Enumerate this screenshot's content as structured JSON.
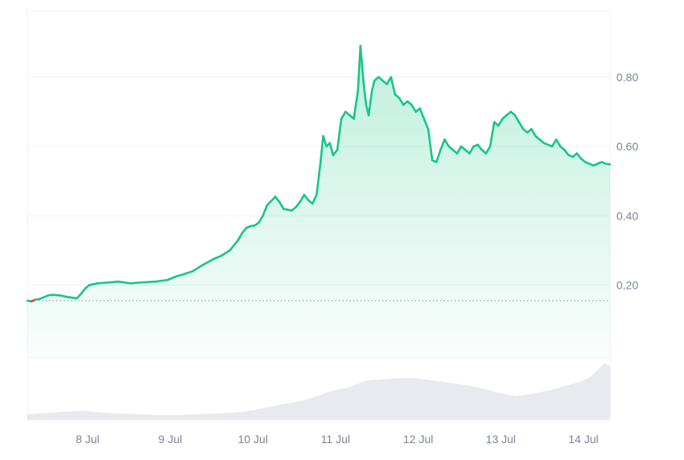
{
  "colors": {
    "up_line": "#16c784",
    "down_line": "#ea3943",
    "area_fill": "#16c784",
    "grid": "#eef0f3",
    "volume_fill": "#e8eaef",
    "tick_text": "#7a8494",
    "baseline": "#8a93a3"
  },
  "chart_data": [
    {
      "type": "area",
      "series": [
        {
          "values_x_unit": "days (Jul)",
          "x": [
            7.3,
            7.35,
            7.4,
            7.45,
            7.5,
            7.55,
            7.6,
            7.7,
            7.8,
            7.9,
            7.95,
            8.0,
            8.05,
            8.15,
            8.25,
            8.4,
            8.55,
            8.7,
            8.85,
            9.0,
            9.1,
            9.2,
            9.3,
            9.4,
            9.55,
            9.65,
            9.75,
            9.85,
            9.9,
            9.95,
            10.0,
            10.05,
            10.1,
            10.15,
            10.2,
            10.3,
            10.35,
            10.4,
            10.5,
            10.55,
            10.6,
            10.65,
            10.7,
            10.75,
            10.8,
            10.85,
            10.88,
            10.92,
            10.96,
            11.0,
            11.05,
            11.1,
            11.15,
            11.2,
            11.25,
            11.3,
            11.33,
            11.37,
            11.4,
            11.43,
            11.47,
            11.5,
            11.55,
            11.6,
            11.65,
            11.7,
            11.75,
            11.8,
            11.85,
            11.9,
            11.95,
            12.0,
            12.05,
            12.1,
            12.15,
            12.2,
            12.25,
            12.3,
            12.35,
            12.4,
            12.45,
            12.5,
            12.55,
            12.6,
            12.65,
            12.7,
            12.75,
            12.8,
            12.85,
            12.9,
            12.95,
            13.0,
            13.05,
            13.1,
            13.15,
            13.2,
            13.25,
            13.3,
            13.35,
            13.4,
            13.45,
            13.5,
            13.55,
            13.6,
            13.65,
            13.7,
            13.75,
            13.8,
            13.85,
            13.9,
            13.95,
            14.0,
            14.05,
            14.1,
            14.15,
            14.2,
            14.25,
            14.3,
            14.35
          ],
          "y": [
            0.155,
            0.153,
            0.158,
            0.16,
            0.165,
            0.17,
            0.172,
            0.17,
            0.165,
            0.162,
            0.175,
            0.19,
            0.2,
            0.205,
            0.207,
            0.21,
            0.205,
            0.208,
            0.21,
            0.215,
            0.225,
            0.232,
            0.24,
            0.255,
            0.275,
            0.285,
            0.3,
            0.33,
            0.35,
            0.365,
            0.37,
            0.372,
            0.38,
            0.4,
            0.43,
            0.455,
            0.44,
            0.42,
            0.415,
            0.425,
            0.44,
            0.46,
            0.445,
            0.435,
            0.46,
            0.56,
            0.63,
            0.6,
            0.61,
            0.575,
            0.59,
            0.68,
            0.7,
            0.69,
            0.68,
            0.76,
            0.89,
            0.78,
            0.72,
            0.69,
            0.76,
            0.79,
            0.8,
            0.79,
            0.78,
            0.8,
            0.75,
            0.74,
            0.72,
            0.73,
            0.72,
            0.7,
            0.71,
            0.68,
            0.65,
            0.56,
            0.555,
            0.59,
            0.62,
            0.6,
            0.59,
            0.58,
            0.6,
            0.59,
            0.58,
            0.6,
            0.605,
            0.59,
            0.58,
            0.6,
            0.67,
            0.66,
            0.68,
            0.69,
            0.7,
            0.69,
            0.67,
            0.65,
            0.64,
            0.65,
            0.63,
            0.62,
            0.61,
            0.605,
            0.6,
            0.62,
            0.6,
            0.59,
            0.575,
            0.57,
            0.58,
            0.565,
            0.555,
            0.55,
            0.545,
            0.55,
            0.555,
            0.55,
            0.548
          ]
        }
      ],
      "baseline_y": 0.155,
      "ylim": [
        -0.01,
        0.99
      ],
      "xlim": [
        7.3,
        14.35
      ],
      "yticks": [
        0.2,
        0.4,
        0.6,
        0.8
      ],
      "ytick_labels": [
        "0.20",
        "0.40",
        "0.60",
        "0.80"
      ],
      "xticks": [
        8,
        9,
        10,
        11,
        12,
        13,
        14
      ],
      "xtick_labels": [
        "8 Jul",
        "9 Jul",
        "10 Jul",
        "11 Jul",
        "12 Jul",
        "13 Jul",
        "14 Jul"
      ],
      "grid": true,
      "legend": "none"
    },
    {
      "type": "area",
      "series": [
        {
          "x": [
            7.3,
            7.5,
            7.7,
            8.0,
            8.2,
            8.4,
            8.6,
            8.8,
            9.0,
            9.2,
            9.4,
            9.6,
            9.8,
            10.0,
            10.2,
            10.4,
            10.6,
            10.8,
            11.0,
            11.2,
            11.4,
            11.6,
            11.8,
            12.0,
            12.2,
            12.4,
            12.6,
            12.8,
            13.0,
            13.2,
            13.4,
            13.6,
            13.8,
            14.0,
            14.1,
            14.2,
            14.28,
            14.35
          ],
          "y": [
            0.1,
            0.12,
            0.14,
            0.16,
            0.13,
            0.11,
            0.1,
            0.09,
            0.09,
            0.09,
            0.1,
            0.11,
            0.13,
            0.16,
            0.22,
            0.28,
            0.33,
            0.42,
            0.52,
            0.58,
            0.7,
            0.72,
            0.74,
            0.74,
            0.7,
            0.66,
            0.62,
            0.56,
            0.48,
            0.42,
            0.46,
            0.52,
            0.6,
            0.68,
            0.75,
            0.88,
            1.0,
            0.96
          ]
        }
      ],
      "ylim": [
        0,
        1.1
      ],
      "xlim": [
        7.3,
        14.35
      ],
      "legend": "none"
    }
  ]
}
